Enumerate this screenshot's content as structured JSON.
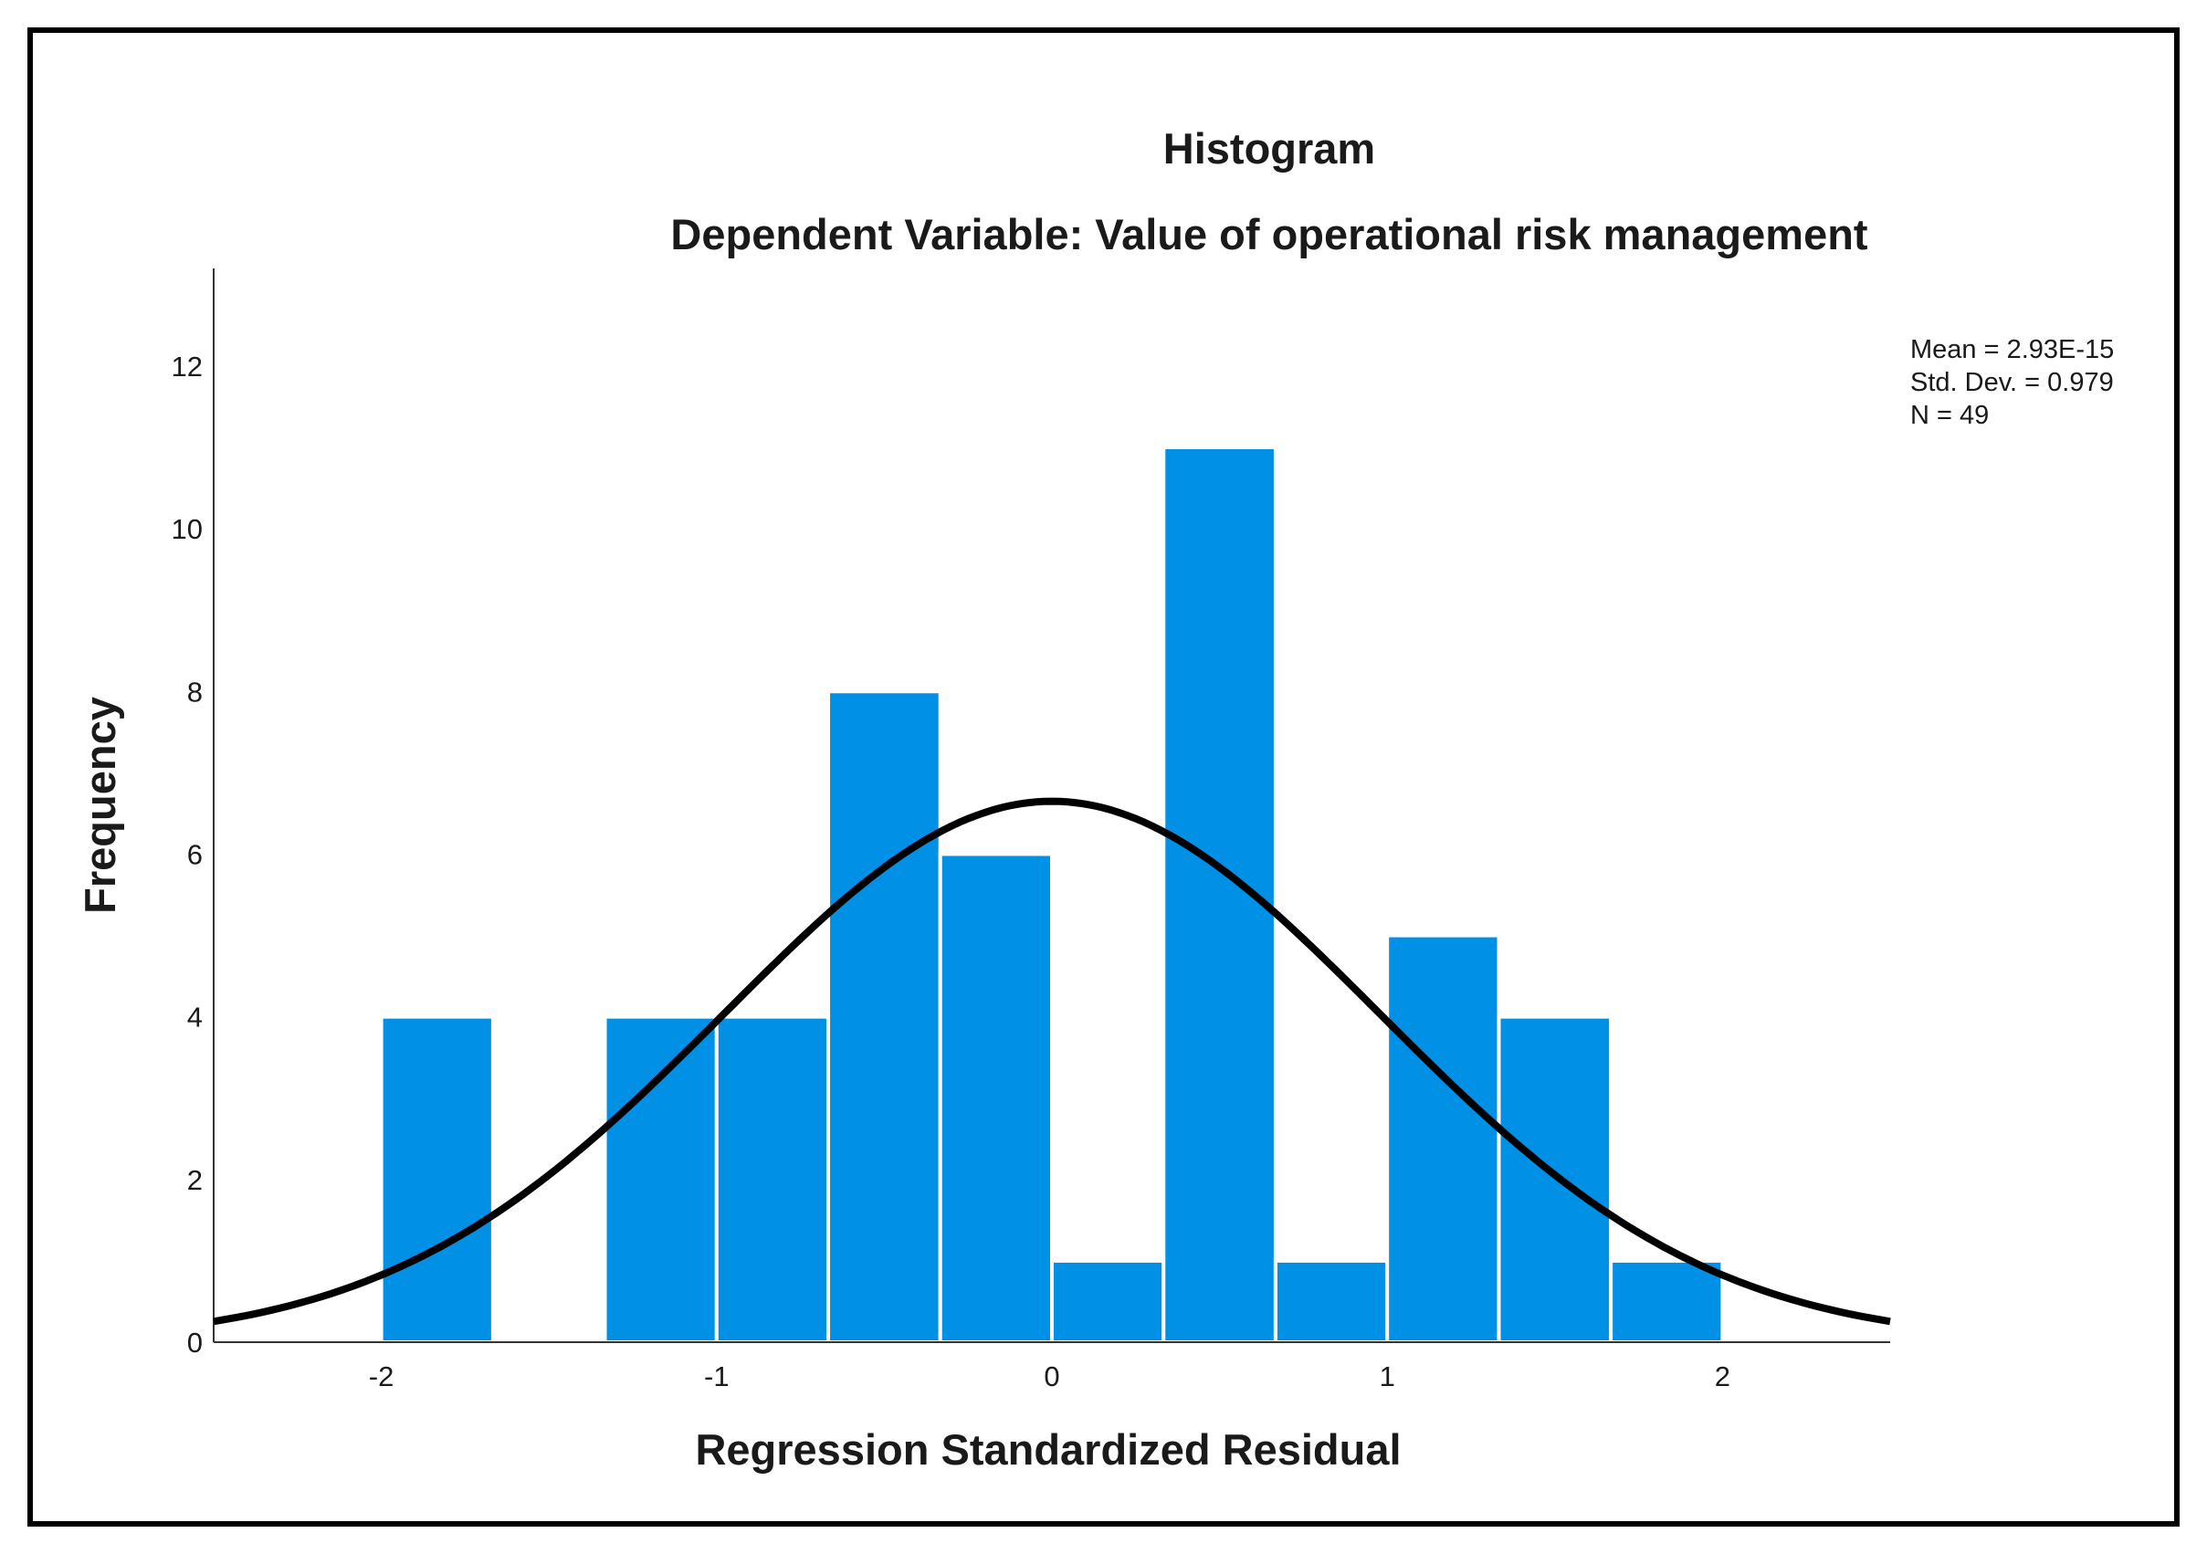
{
  "chart_data": {
    "type": "bar",
    "title": "Histogram",
    "subtitle": "Dependent Variable: Value of operational risk management",
    "xlabel": "Regression Standardized Residual",
    "ylabel": "Frequency",
    "xlim": [
      -2.5,
      2.5
    ],
    "ylim": [
      0,
      13.2
    ],
    "xticks": [
      -2,
      -1,
      0,
      1,
      2
    ],
    "yticks": [
      0,
      2,
      4,
      6,
      8,
      10,
      12
    ],
    "bin_width": 0.333,
    "bins": [
      {
        "start": -2.0,
        "end": -1.667,
        "count": 4
      },
      {
        "start": -1.667,
        "end": -1.333,
        "count": 0
      },
      {
        "start": -1.333,
        "end": -1.0,
        "count": 4
      },
      {
        "start": -1.0,
        "end": -0.667,
        "count": 4
      },
      {
        "start": -0.667,
        "end": -0.333,
        "count": 8
      },
      {
        "start": -0.333,
        "end": 0.0,
        "count": 6
      },
      {
        "start": 0.0,
        "end": 0.333,
        "count": 1
      },
      {
        "start": 0.333,
        "end": 0.667,
        "count": 11
      },
      {
        "start": 0.667,
        "end": 1.0,
        "count": 1
      },
      {
        "start": 1.0,
        "end": 1.333,
        "count": 5
      },
      {
        "start": 1.333,
        "end": 1.667,
        "count": 4
      },
      {
        "start": 1.667,
        "end": 2.0,
        "count": 1
      }
    ],
    "normal_curve": {
      "mean": 0,
      "sd": 0.979,
      "n": 49
    },
    "stats": [
      "Mean = 2.93E-15",
      "Std. Dev. = 0.979",
      "N = 49"
    ],
    "grid": false,
    "legend": "none",
    "colors": {
      "bar": "#0091e6",
      "bar_edge": "#ffffff",
      "curve": "#000000",
      "axis": "#333333"
    }
  }
}
